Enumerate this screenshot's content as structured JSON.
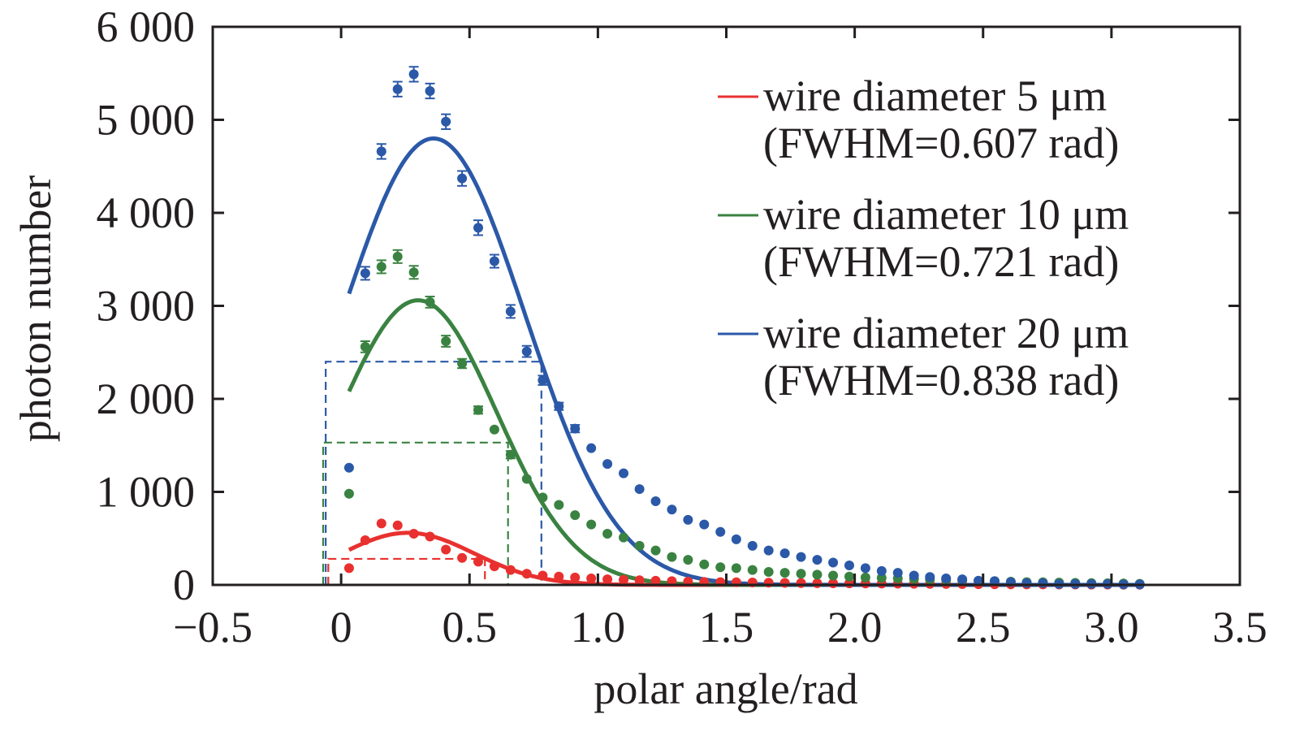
{
  "chart_data": {
    "type": "scatter",
    "xlabel": "polar angle/rad",
    "ylabel": "photon number",
    "xlim": [
      -0.5,
      3.5
    ],
    "ylim": [
      0,
      6000
    ],
    "xticks": [
      -0.5,
      0,
      0.5,
      1.0,
      1.5,
      2.0,
      2.5,
      3.0,
      3.5
    ],
    "xtick_labels": [
      "−0.5",
      "0",
      "0.5",
      "1.0",
      "1.5",
      "2.0",
      "2.5",
      "3.0",
      "3.5"
    ],
    "yticks": [
      0,
      1000,
      2000,
      3000,
      4000,
      5000,
      6000
    ],
    "ytick_labels": [
      "0",
      "1 000",
      "2 000",
      "3 000",
      "4 000",
      "5 000",
      "6 000"
    ],
    "grid": false,
    "legend_position": "top-right",
    "x": [
      0.031,
      0.094,
      0.157,
      0.22,
      0.283,
      0.346,
      0.408,
      0.471,
      0.534,
      0.597,
      0.66,
      0.723,
      0.785,
      0.848,
      0.911,
      0.974,
      1.037,
      1.1,
      1.162,
      1.225,
      1.288,
      1.351,
      1.414,
      1.477,
      1.539,
      1.602,
      1.665,
      1.728,
      1.791,
      1.854,
      1.916,
      1.979,
      2.042,
      2.105,
      2.168,
      2.231,
      2.293,
      2.356,
      2.419,
      2.482,
      2.545,
      2.608,
      2.67,
      2.733,
      2.796,
      2.859,
      2.922,
      2.985,
      3.047,
      3.11
    ],
    "series": [
      {
        "name": "wire diameter 5 μm",
        "legend_line1": "wire diameter 5 μm",
        "legend_line2": "(FWHM=0.607 rad)",
        "color": "#e8312f",
        "fit": {
          "peak": 560,
          "center": 0.26,
          "fwhm": 0.607
        },
        "half_max": {
          "y": 280,
          "x_from": -0.05,
          "x_to": 0.56
        },
        "values": [
          180,
          480,
          660,
          640,
          550,
          520,
          380,
          290,
          250,
          200,
          160,
          120,
          100,
          90,
          80,
          70,
          60,
          55,
          50,
          45,
          40,
          35,
          32,
          30,
          28,
          26,
          24,
          22,
          20,
          18,
          17,
          16,
          15,
          14,
          13,
          12,
          11,
          10,
          9,
          8,
          7,
          6,
          5,
          5,
          4,
          4,
          3,
          3,
          2,
          2
        ],
        "errors": false
      },
      {
        "name": "wire diameter 10 μm",
        "legend_line1": "wire diameter 10 μm",
        "legend_line2": "(FWHM=0.721 rad)",
        "color": "#3a8241",
        "fit": {
          "peak": 3060,
          "center": 0.3,
          "fwhm": 0.721
        },
        "half_max": {
          "y": 1530,
          "x_from": -0.07,
          "x_to": 0.65
        },
        "values": [
          980,
          2560,
          3420,
          3530,
          3360,
          3040,
          2620,
          2380,
          1880,
          1670,
          1400,
          1140,
          940,
          860,
          750,
          650,
          550,
          510,
          420,
          370,
          300,
          270,
          220,
          190,
          180,
          160,
          140,
          130,
          120,
          110,
          100,
          90,
          80,
          75,
          70,
          65,
          60,
          55,
          50,
          45,
          40,
          35,
          30,
          28,
          25,
          22,
          20,
          18,
          15,
          12
        ],
        "errors": [
          0,
          60,
          70,
          70,
          70,
          60,
          60,
          50,
          40,
          0,
          40,
          0,
          0,
          0,
          0,
          0,
          0,
          0,
          0,
          0,
          0,
          0,
          0,
          0,
          0,
          0,
          0,
          0,
          0,
          0,
          0,
          0,
          0,
          0,
          0,
          0,
          0,
          0,
          0,
          0,
          0,
          0,
          0,
          0,
          0,
          0,
          0,
          0,
          0,
          0
        ]
      },
      {
        "name": "wire diameter 20 μm",
        "legend_line1": "wire diameter 20 μm",
        "legend_line2": "(FWHM=0.838 rad)",
        "color": "#2b59a8",
        "fit": {
          "peak": 4800,
          "center": 0.36,
          "fwhm": 0.838
        },
        "half_max": {
          "y": 2400,
          "x_from": -0.06,
          "x_to": 0.78
        },
        "values": [
          1260,
          3350,
          4660,
          5330,
          5490,
          5310,
          4980,
          4370,
          3840,
          3480,
          2940,
          2510,
          2200,
          1920,
          1680,
          1470,
          1300,
          1200,
          1030,
          900,
          810,
          700,
          650,
          570,
          490,
          420,
          370,
          340,
          300,
          270,
          240,
          210,
          180,
          150,
          130,
          100,
          85,
          70,
          60,
          45,
          40,
          30,
          20,
          20,
          10,
          10,
          10,
          10,
          5,
          5
        ],
        "errors": [
          0,
          70,
          80,
          80,
          80,
          80,
          80,
          80,
          80,
          70,
          70,
          60,
          50,
          40,
          40,
          0,
          0,
          0,
          0,
          0,
          0,
          0,
          0,
          0,
          0,
          0,
          0,
          0,
          0,
          0,
          0,
          0,
          0,
          0,
          0,
          0,
          0,
          0,
          0,
          0,
          0,
          0,
          0,
          0,
          0,
          0,
          0,
          0,
          0,
          0
        ]
      }
    ]
  }
}
